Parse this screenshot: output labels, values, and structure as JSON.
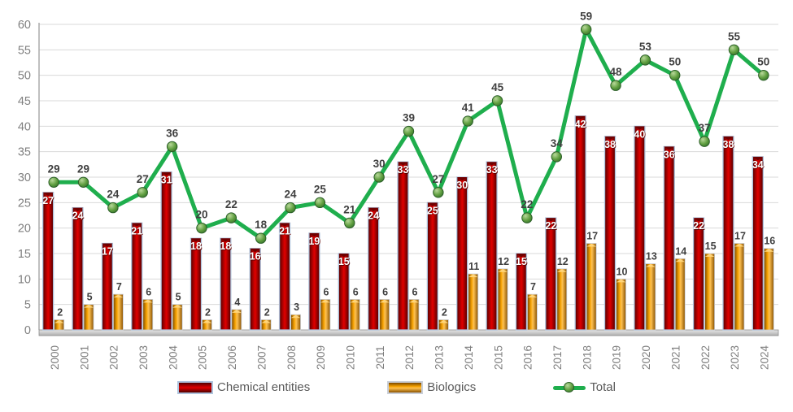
{
  "chart_data": {
    "type": "bar+line",
    "title": "",
    "xlabel": "",
    "ylabel": "",
    "categories": [
      "2000",
      "2001",
      "2002",
      "2003",
      "2004",
      "2005",
      "2006",
      "2007",
      "2008",
      "2009",
      "2010",
      "2011",
      "2012",
      "2013",
      "2014",
      "2015",
      "2016",
      "2017",
      "2018",
      "2019",
      "2020",
      "2021",
      "2022",
      "2023",
      "2024"
    ],
    "series": [
      {
        "name": "Chemical entities",
        "type": "bar",
        "color": "#C00000",
        "values": [
          27,
          24,
          17,
          21,
          31,
          18,
          18,
          16,
          21,
          19,
          15,
          24,
          33,
          25,
          30,
          33,
          15,
          22,
          42,
          38,
          40,
          36,
          22,
          38,
          34
        ]
      },
      {
        "name": "Biologics",
        "type": "bar",
        "color": "#F09C00",
        "values": [
          2,
          5,
          7,
          6,
          5,
          2,
          4,
          2,
          3,
          6,
          6,
          6,
          6,
          2,
          11,
          12,
          7,
          12,
          17,
          10,
          13,
          14,
          15,
          17,
          16
        ]
      },
      {
        "name": "Total",
        "type": "line",
        "color": "#1FAE4D",
        "values": [
          29,
          29,
          24,
          27,
          36,
          20,
          22,
          18,
          24,
          25,
          21,
          30,
          39,
          27,
          41,
          45,
          22,
          34,
          59,
          48,
          53,
          50,
          37,
          55,
          50
        ]
      }
    ],
    "ylim": [
      0,
      60
    ],
    "yticks": [
      0,
      5,
      10,
      15,
      20,
      25,
      30,
      35,
      40,
      45,
      50,
      55,
      60
    ],
    "grid": true,
    "legend_position": "bottom",
    "x_label_rotation": -90,
    "colors": {
      "gridline": "#d9d9d9",
      "axis_line": "#a6a6a6",
      "tick_label": "#7f7f7f",
      "data_label_dark": "#3f3f3f",
      "data_label_light": "#ffffff"
    }
  }
}
